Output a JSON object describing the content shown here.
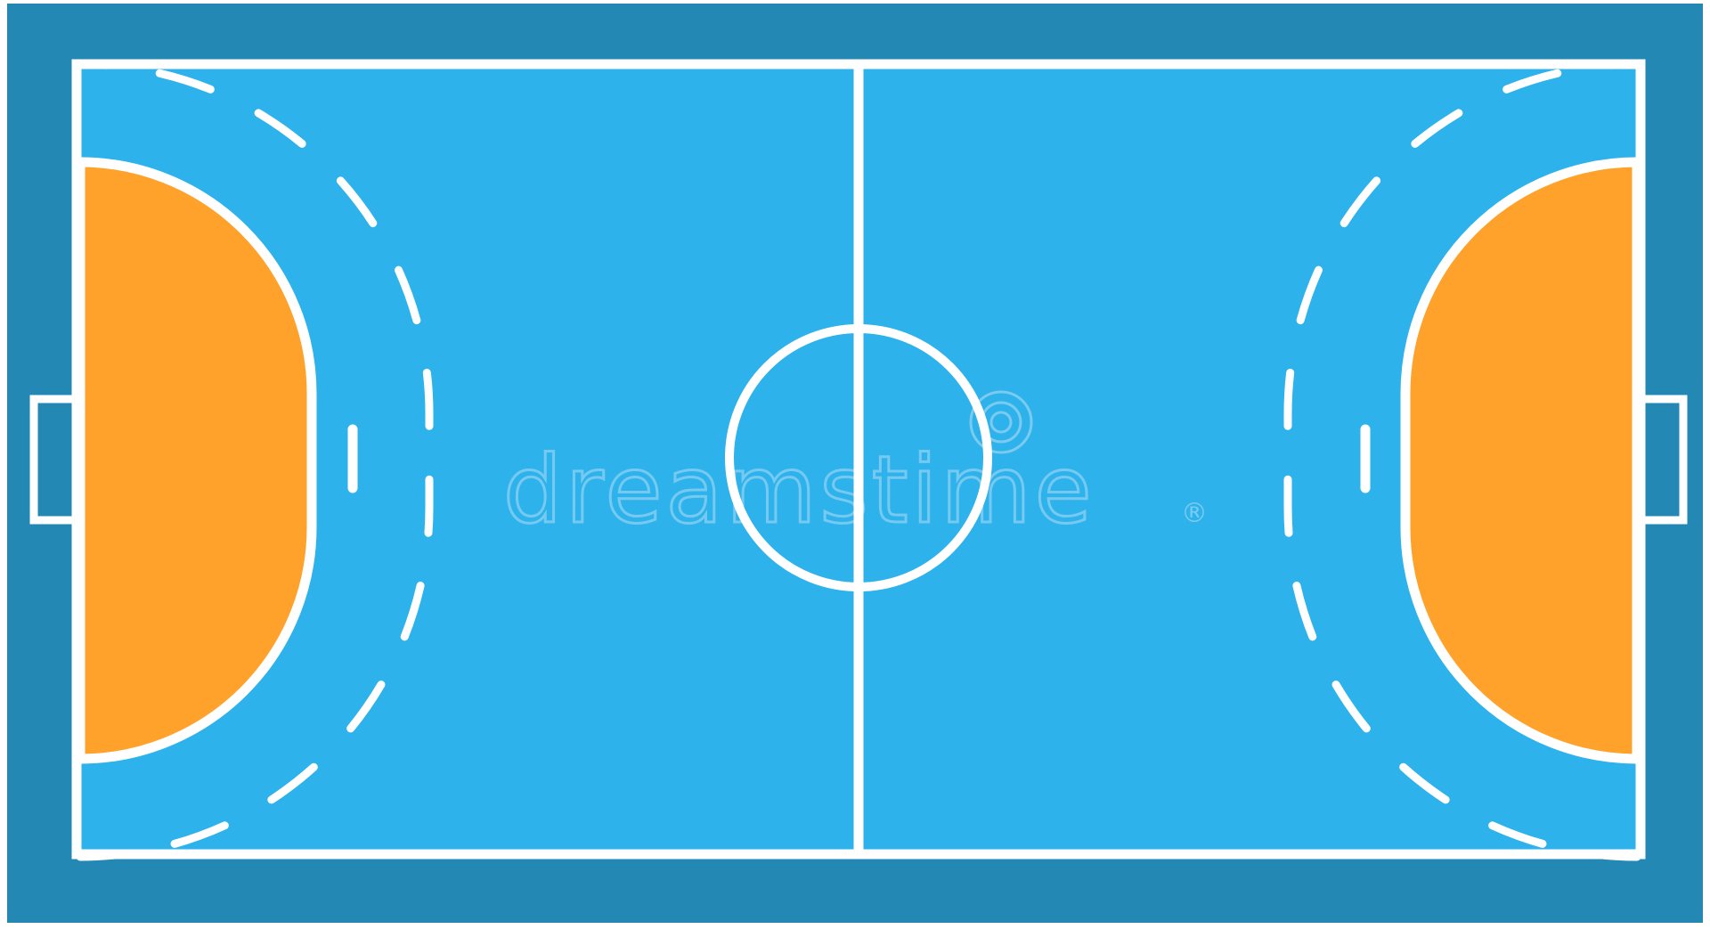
{
  "image": {
    "subject": "handball court",
    "view": "top-down"
  },
  "colors": {
    "outer_border": "#2389b4",
    "playing_surface": "#2eb2eb",
    "goal_area": "#ffa22c",
    "lines": "#ffffff",
    "watermark": "#8fd1f2",
    "page_background": "#ffffff"
  },
  "watermark": {
    "text": "dreamstime",
    "mark": "®"
  }
}
